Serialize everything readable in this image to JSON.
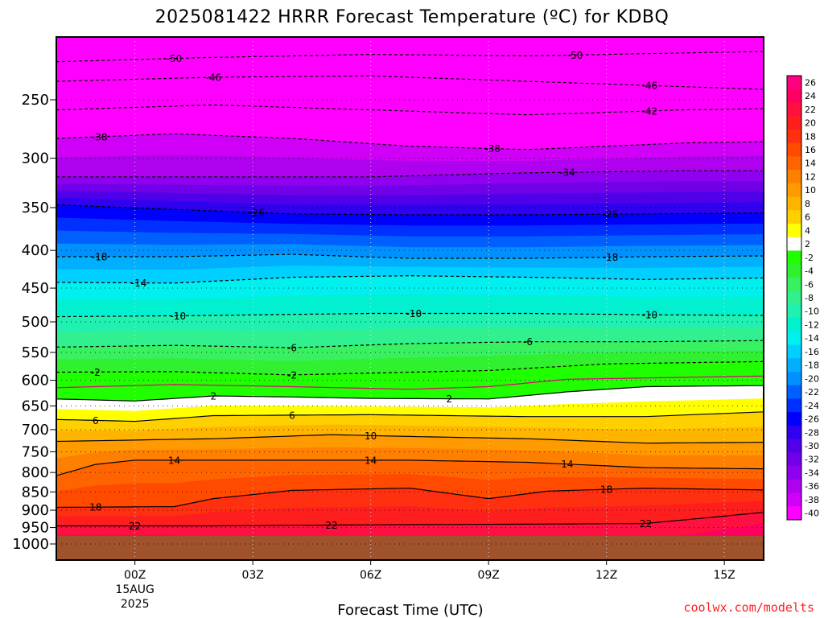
{
  "chart_data": {
    "type": "heatmap",
    "title": "2025081422 HRRR Forecast Temperature (ºC) for KDBQ",
    "xlabel": "Forecast Time (UTC)",
    "ylabel": "",
    "credit": "coolwx.com/modelts",
    "credit_color": "#ff2020",
    "x_unit": "hours since 2025-08-14 22Z",
    "xlim": [
      0,
      18
    ],
    "x_ticks": [
      {
        "x": 2,
        "label": "00Z",
        "sub1": "15AUG",
        "sub2": "2025"
      },
      {
        "x": 5,
        "label": "03Z"
      },
      {
        "x": 8,
        "label": "06Z"
      },
      {
        "x": 11,
        "label": "09Z"
      },
      {
        "x": 14,
        "label": "12Z"
      },
      {
        "x": 17,
        "label": "15Z"
      }
    ],
    "y_unit": "hPa",
    "ylim": [
      1000,
      200
    ],
    "y_scale": "log",
    "y_ticks": [
      250,
      300,
      350,
      400,
      450,
      500,
      550,
      600,
      650,
      700,
      750,
      800,
      850,
      900,
      950,
      1000
    ],
    "ground_color": "#a0522d",
    "colorbar": {
      "levels": [
        26,
        24,
        22,
        20,
        18,
        16,
        14,
        12,
        10,
        8,
        6,
        4,
        2,
        -2,
        -4,
        -6,
        -8,
        -10,
        -12,
        -14,
        -16,
        -18,
        -20,
        -22,
        -24,
        -26,
        -28,
        -30,
        -32,
        -34,
        -36,
        -38,
        -40
      ],
      "colors": [
        "#ff0080",
        "#ff0060",
        "#ff1040",
        "#ff1e1e",
        "#ff3010",
        "#ff4a00",
        "#ff6400",
        "#ff8000",
        "#ff9a00",
        "#ffb400",
        "#ffd000",
        "#ffff00",
        "#ffffff",
        "#20ff00",
        "#30f030",
        "#38f060",
        "#30f090",
        "#20f0b0",
        "#00f0d0",
        "#00f0f0",
        "#00d0ff",
        "#00b0ff",
        "#0090ff",
        "#0060ff",
        "#0030ff",
        "#0000ff",
        "#3000f0",
        "#5000e8",
        "#7000e8",
        "#9000f0",
        "#b000f0",
        "#d000f8",
        "#ff00ff"
      ],
      "positions": "between_levels"
    },
    "isotherms": [
      {
        "value": -50,
        "points": [
          [
            0,
            222
          ],
          [
            4,
            219
          ],
          [
            8,
            217
          ],
          [
            12,
            218
          ],
          [
            16,
            216
          ],
          [
            18,
            215
          ]
        ],
        "labels": [
          {
            "x": 3.0,
            "text": "-50"
          },
          {
            "x": 13.2,
            "text": "-50"
          }
        ]
      },
      {
        "value": -46,
        "points": [
          [
            0,
            236
          ],
          [
            4,
            233
          ],
          [
            8,
            232
          ],
          [
            12,
            236
          ],
          [
            16,
            240
          ],
          [
            18,
            242
          ]
        ],
        "labels": [
          {
            "x": 4.0,
            "text": "-46"
          },
          {
            "x": 15.1,
            "text": "-46"
          }
        ]
      },
      {
        "value": -42,
        "points": [
          [
            0,
            258
          ],
          [
            4,
            254
          ],
          [
            8,
            258
          ],
          [
            12,
            262
          ],
          [
            16,
            258
          ],
          [
            18,
            257
          ]
        ],
        "labels": [
          {
            "x": 15.1,
            "text": "-42"
          }
        ]
      },
      {
        "value": -38,
        "points": [
          [
            0,
            282
          ],
          [
            3,
            278
          ],
          [
            6,
            282
          ],
          [
            9,
            289
          ],
          [
            12,
            292
          ],
          [
            16,
            286
          ],
          [
            18,
            285
          ]
        ],
        "labels": [
          {
            "x": 1.1,
            "text": "-38"
          },
          {
            "x": 11.1,
            "text": "-38"
          }
        ]
      },
      {
        "value": -34,
        "points": [
          [
            0,
            318
          ],
          [
            4,
            318
          ],
          [
            8,
            318
          ],
          [
            12,
            314
          ],
          [
            16,
            312
          ],
          [
            18,
            312
          ]
        ],
        "labels": [
          {
            "x": 13.0,
            "text": "-34"
          }
        ]
      },
      {
        "value": -26,
        "points": [
          [
            0,
            347
          ],
          [
            3,
            352
          ],
          [
            6,
            357
          ],
          [
            9,
            358
          ],
          [
            12,
            358
          ],
          [
            15,
            357
          ],
          [
            18,
            356
          ]
        ],
        "labels": [
          {
            "x": 5.1,
            "text": "-26"
          },
          {
            "x": 14.1,
            "text": "-26"
          }
        ]
      },
      {
        "value": -18,
        "points": [
          [
            0,
            408
          ],
          [
            3,
            408
          ],
          [
            6,
            405
          ],
          [
            9,
            410
          ],
          [
            12,
            410
          ],
          [
            15,
            408
          ],
          [
            18,
            407
          ]
        ],
        "labels": [
          {
            "x": 1.1,
            "text": "-18"
          },
          {
            "x": 14.1,
            "text": "-18"
          }
        ]
      },
      {
        "value": -14,
        "points": [
          [
            0,
            442
          ],
          [
            3,
            443
          ],
          [
            6,
            435
          ],
          [
            9,
            433
          ],
          [
            12,
            435
          ],
          [
            15,
            438
          ],
          [
            18,
            436
          ]
        ],
        "labels": [
          {
            "x": 2.1,
            "text": "-14"
          }
        ]
      },
      {
        "value": -10,
        "points": [
          [
            0,
            492
          ],
          [
            4,
            490
          ],
          [
            8,
            487
          ],
          [
            12,
            487
          ],
          [
            15,
            489
          ],
          [
            18,
            490
          ]
        ],
        "labels": [
          {
            "x": 3.1,
            "text": "-10"
          },
          {
            "x": 9.1,
            "text": "-10"
          },
          {
            "x": 15.1,
            "text": "-10"
          }
        ]
      },
      {
        "value": -6,
        "points": [
          [
            0,
            541
          ],
          [
            3,
            538
          ],
          [
            6,
            542
          ],
          [
            9,
            535
          ],
          [
            12,
            532
          ],
          [
            15,
            532
          ],
          [
            18,
            530
          ]
        ],
        "labels": [
          {
            "x": 6.0,
            "text": "-6"
          },
          {
            "x": 12.0,
            "text": "-6"
          }
        ]
      },
      {
        "value": -2,
        "points": [
          [
            0,
            585
          ],
          [
            3,
            584
          ],
          [
            6,
            590
          ],
          [
            9,
            585
          ],
          [
            11,
            582
          ],
          [
            14,
            570
          ],
          [
            18,
            566
          ]
        ],
        "labels": [
          {
            "x": 1.0,
            "text": "-2"
          },
          {
            "x": 6.0,
            "text": "-2"
          }
        ]
      },
      {
        "value": 0,
        "color": "#e0007a",
        "points": [
          [
            0,
            614
          ],
          [
            3,
            608
          ],
          [
            6,
            612
          ],
          [
            9,
            617
          ],
          [
            11,
            612
          ],
          [
            13,
            598
          ],
          [
            18,
            592
          ]
        ],
        "labels": []
      },
      {
        "value": 2,
        "points": [
          [
            0,
            636
          ],
          [
            2,
            640
          ],
          [
            4,
            630
          ],
          [
            6,
            632
          ],
          [
            8,
            635
          ],
          [
            11,
            636
          ],
          [
            13,
            622
          ],
          [
            15,
            612
          ],
          [
            18,
            610
          ]
        ],
        "labels": [
          {
            "x": 4.0,
            "text": "2"
          },
          {
            "x": 10.0,
            "text": "2"
          }
        ]
      },
      {
        "value": 6,
        "points": [
          [
            0,
            678
          ],
          [
            2,
            682
          ],
          [
            4,
            670
          ],
          [
            8,
            668
          ],
          [
            12,
            672
          ],
          [
            15,
            672
          ],
          [
            18,
            662
          ]
        ],
        "labels": [
          {
            "x": 1.0,
            "text": "6"
          },
          {
            "x": 6.0,
            "text": "6"
          }
        ]
      },
      {
        "value": 10,
        "points": [
          [
            0,
            726
          ],
          [
            4,
            720
          ],
          [
            7,
            711
          ],
          [
            9,
            715
          ],
          [
            12,
            720
          ],
          [
            15,
            730
          ],
          [
            18,
            728
          ]
        ],
        "labels": [
          {
            "x": 8.0,
            "text": "10"
          }
        ]
      },
      {
        "value": 14,
        "points": [
          [
            0,
            808
          ],
          [
            1,
            780
          ],
          [
            2,
            770
          ],
          [
            5,
            770
          ],
          [
            9,
            770
          ],
          [
            12,
            775
          ],
          [
            15,
            788
          ],
          [
            18,
            791
          ]
        ],
        "labels": [
          {
            "x": 3.0,
            "text": "14"
          },
          {
            "x": 8.0,
            "text": "14"
          },
          {
            "x": 13.0,
            "text": "14"
          }
        ]
      },
      {
        "value": 18,
        "points": [
          [
            0,
            892
          ],
          [
            3,
            890
          ],
          [
            4,
            868
          ],
          [
            6,
            846
          ],
          [
            9,
            840
          ],
          [
            11,
            868
          ],
          [
            12.5,
            848
          ],
          [
            15,
            840
          ],
          [
            18,
            845
          ]
        ],
        "labels": [
          {
            "x": 1.0,
            "text": "18"
          },
          {
            "x": 14.0,
            "text": "18"
          }
        ]
      },
      {
        "value": 22,
        "points": [
          [
            0,
            945
          ],
          [
            4,
            945
          ],
          [
            8,
            942
          ],
          [
            12,
            940
          ],
          [
            15,
            938
          ],
          [
            18,
            906
          ]
        ],
        "labels": [
          {
            "x": 2.0,
            "text": "22"
          },
          {
            "x": 7.0,
            "text": "22"
          },
          {
            "x": 15.0,
            "text": "22"
          }
        ]
      }
    ]
  }
}
